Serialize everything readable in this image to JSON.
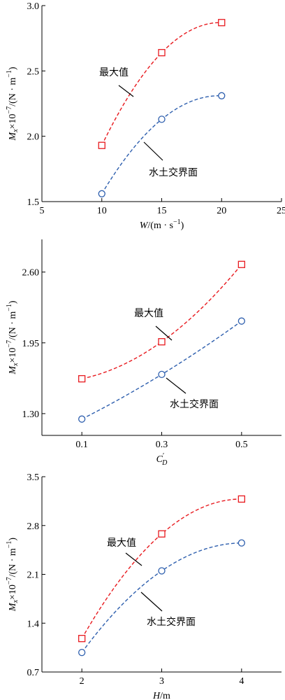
{
  "chart_data": [
    {
      "type": "scatter",
      "xlabel": "W/(m·s⁻¹)",
      "ylabel": "Mx×10⁻⁷/(N·m⁻¹)",
      "xlim": [
        5,
        25
      ],
      "ylim": [
        1.5,
        3.0
      ],
      "xticks": [
        "5",
        "10",
        "15",
        "20",
        "25"
      ],
      "yticks": [
        "1.5",
        "2.0",
        "2.5",
        "3.0"
      ],
      "series": [
        {
          "name": "最大值",
          "marker": "square",
          "color": "#e8191e",
          "x": [
            10,
            15,
            20
          ],
          "y": [
            1.93,
            2.64,
            2.87
          ]
        },
        {
          "name": "水土交界面",
          "marker": "circle",
          "color": "#2e5fae",
          "x": [
            10,
            15,
            20
          ],
          "y": [
            1.56,
            2.13,
            2.31
          ]
        }
      ]
    },
    {
      "type": "scatter",
      "xlabel": "C′D",
      "ylabel": "Mx×10⁻⁷/(N·m⁻¹)",
      "xlim": [
        0.0,
        0.6
      ],
      "ylim": [
        1.1,
        2.9
      ],
      "xticks": [
        "0.1",
        "0.3",
        "0.5"
      ],
      "yticks": [
        "1.30",
        "1.95",
        "2.60"
      ],
      "series": [
        {
          "name": "最大值",
          "marker": "square",
          "color": "#e8191e",
          "x": [
            0.1,
            0.3,
            0.5
          ],
          "y": [
            1.62,
            1.96,
            2.67
          ]
        },
        {
          "name": "水土交界面",
          "marker": "circle",
          "color": "#2e5fae",
          "x": [
            0.1,
            0.3,
            0.5
          ],
          "y": [
            1.25,
            1.66,
            2.15
          ]
        }
      ]
    },
    {
      "type": "scatter",
      "xlabel": "H/m",
      "ylabel": "Mx×10⁻⁷/(N·m⁻¹)",
      "xlim": [
        1.5,
        4.5
      ],
      "ylim": [
        0.7,
        3.5
      ],
      "xticks": [
        "2",
        "3",
        "4"
      ],
      "yticks": [
        "0.7",
        "1.4",
        "2.1",
        "2.8",
        "3.5"
      ],
      "series": [
        {
          "name": "最大值",
          "marker": "square",
          "color": "#e8191e",
          "x": [
            2,
            3,
            4
          ],
          "y": [
            1.18,
            2.68,
            3.18
          ]
        },
        {
          "name": "水土交界面",
          "marker": "circle",
          "color": "#2e5fae",
          "x": [
            2,
            3,
            4
          ],
          "y": [
            0.98,
            2.15,
            2.55
          ]
        }
      ]
    }
  ]
}
